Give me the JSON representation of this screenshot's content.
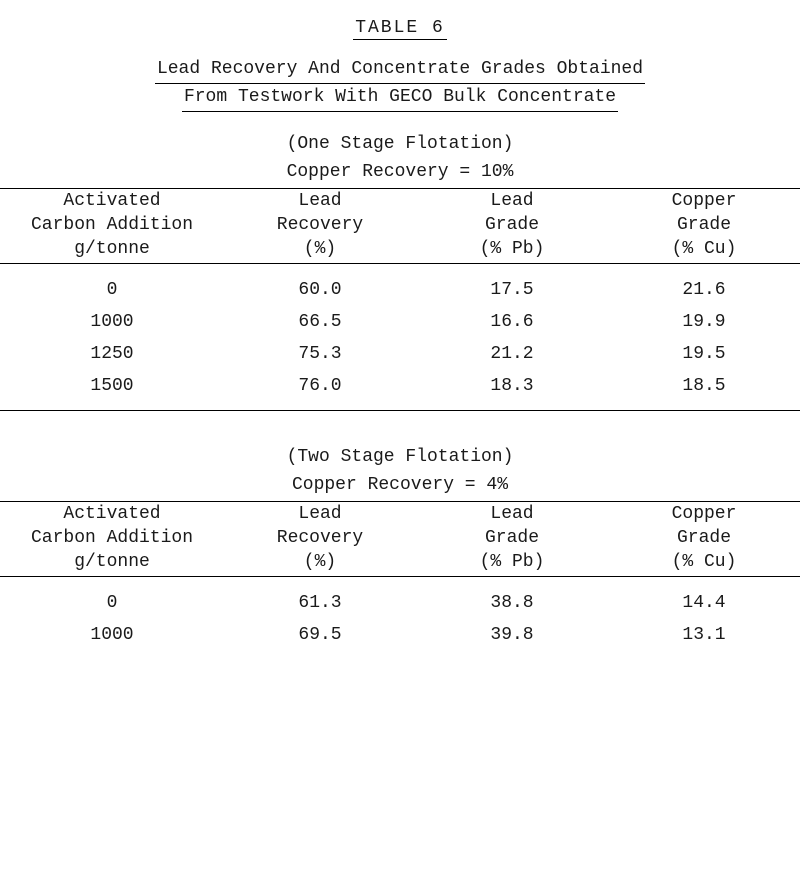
{
  "tableNumber": "TABLE   6",
  "titleLines": [
    "Lead Recovery And Concentrate Grades Obtained",
    "From Testwork With GECO Bulk Concentrate"
  ],
  "sections": [
    {
      "stageLabel": "(One Stage Flotation)",
      "recoveryLabel": "Copper Recovery = 10%",
      "headers": {
        "c1a": "Activated",
        "c1b": "Carbon Addition",
        "c1c": "g/tonne",
        "c2a": "Lead",
        "c2b": "Recovery",
        "c2c": "(%)",
        "c3a": "Lead",
        "c3b": "Grade",
        "c3c": "(% Pb)",
        "c4a": "Copper",
        "c4b": "Grade",
        "c4c": "(% Cu)"
      },
      "rows": [
        {
          "c1": "0",
          "c2": "60.0",
          "c3": "17.5",
          "c4": "21.6"
        },
        {
          "c1": "1000",
          "c2": "66.5",
          "c3": "16.6",
          "c4": "19.9"
        },
        {
          "c1": "1250",
          "c2": "75.3",
          "c3": "21.2",
          "c4": "19.5"
        },
        {
          "c1": "1500",
          "c2": "76.0",
          "c3": "18.3",
          "c4": "18.5"
        }
      ]
    },
    {
      "stageLabel": "(Two Stage Flotation)",
      "recoveryLabel": "Copper Recovery = 4%",
      "headers": {
        "c1a": "Activated",
        "c1b": "Carbon Addition",
        "c1c": "g/tonne",
        "c2a": "Lead",
        "c2b": "Recovery",
        "c2c": "(%)",
        "c3a": "Lead",
        "c3b": "Grade",
        "c3c": "(% Pb)",
        "c4a": "Copper",
        "c4b": "Grade",
        "c4c": "(% Cu)"
      },
      "rows": [
        {
          "c1": "0",
          "c2": "61.3",
          "c3": "38.8",
          "c4": "14.4"
        },
        {
          "c1": "1000",
          "c2": "69.5",
          "c3": "39.8",
          "c4": "13.1"
        }
      ]
    }
  ]
}
